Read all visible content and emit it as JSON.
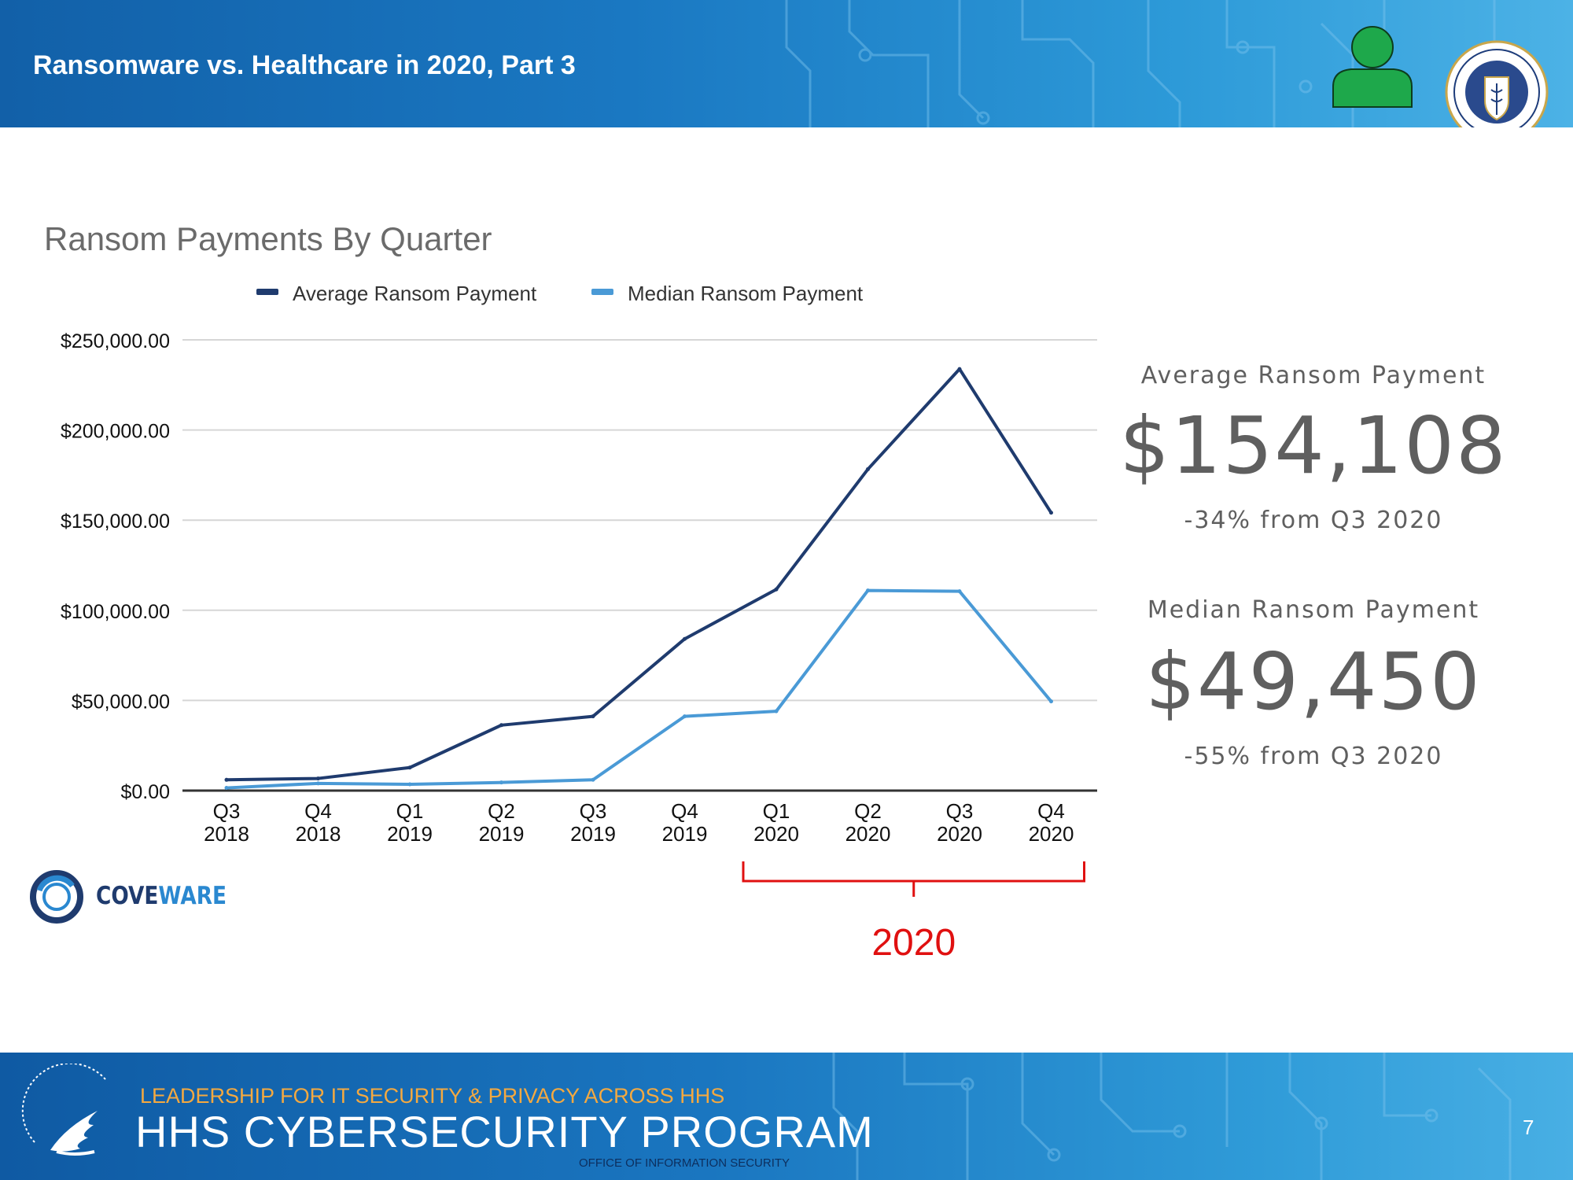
{
  "header": {
    "title": "Ransomware vs. Healthcare in 2020, Part 3"
  },
  "icons": {
    "person": "person-icon",
    "seal": "hc3-seal-icon",
    "hhs_eagle": "hhs-eagle-logo",
    "coveware_logo": "coveware-ring-logo"
  },
  "colors": {
    "header_blue": "#1565b0",
    "average_series": "#1f3b6e",
    "median_series": "#4a9ad6",
    "bracket": "#e01010",
    "person_icon": "#1ea84b"
  },
  "chart_data": {
    "type": "line",
    "title": "Ransom Payments By Quarter",
    "categories": [
      "Q3 2018",
      "Q4 2018",
      "Q1 2019",
      "Q2 2019",
      "Q3 2019",
      "Q4 2019",
      "Q1 2020",
      "Q2 2020",
      "Q3 2020",
      "Q4 2020"
    ],
    "category_lines": [
      [
        "Q3",
        "2018"
      ],
      [
        "Q4",
        "2018"
      ],
      [
        "Q1",
        "2019"
      ],
      [
        "Q2",
        "2019"
      ],
      [
        "Q3",
        "2019"
      ],
      [
        "Q4",
        "2019"
      ],
      [
        "Q1",
        "2020"
      ],
      [
        "Q2",
        "2020"
      ],
      [
        "Q3",
        "2020"
      ],
      [
        "Q4",
        "2020"
      ]
    ],
    "series": [
      {
        "name": "Average Ransom Payment",
        "values": [
          5973,
          6733,
          12762,
          36295,
          41198,
          84116,
          111605,
          178254,
          233817,
          154108
        ]
      },
      {
        "name": "Median Ransom Payment",
        "values": [
          1500,
          4000,
          3500,
          4500,
          6000,
          41179,
          44021,
          111000,
          110532,
          49450
        ]
      }
    ],
    "ylim": [
      0,
      250000
    ],
    "yticks": [
      0,
      50000,
      100000,
      150000,
      200000,
      250000
    ],
    "ytick_labels": [
      "$0.00",
      "$50,000.00",
      "$100,000.00",
      "$150,000.00",
      "$200,000.00",
      "$250,000.00"
    ],
    "grid": true,
    "legend_position": "top",
    "annotation": {
      "text": "2020",
      "spans": [
        "Q1 2020",
        "Q4 2020"
      ]
    }
  },
  "stats": {
    "average": {
      "label": "Average Ransom Payment",
      "value": "$154,108",
      "change": "-34% from Q3 2020"
    },
    "median": {
      "label": "Median Ransom Payment",
      "value": "$49,450",
      "change": "-55% from Q3 2020"
    }
  },
  "source": {
    "brand_part1": "COVE",
    "brand_part2": "WARE"
  },
  "footer": {
    "tagline": "LEADERSHIP FOR IT SECURITY & PRIVACY ACROSS HHS",
    "program": "HHS CYBERSECURITY PROGRAM",
    "office": "OFFICE OF INFORMATION SECURITY",
    "page_number": "7"
  }
}
